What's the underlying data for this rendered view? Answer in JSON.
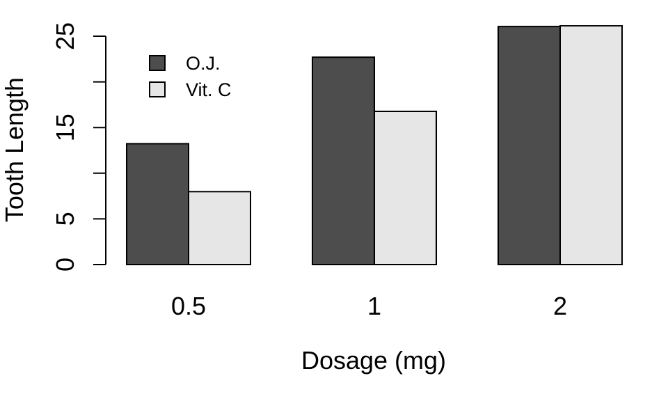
{
  "chart_data": {
    "type": "bar",
    "grouped": true,
    "title": "",
    "xlabel": "Dosage (mg)",
    "ylabel": "Tooth Length",
    "categories": [
      "0.5",
      "1",
      "2"
    ],
    "series": [
      {
        "name": "O.J.",
        "color": "#4d4d4d",
        "values": [
          13.23,
          22.7,
          26.06
        ]
      },
      {
        "name": "Vit. C",
        "color": "#e6e6e6",
        "values": [
          7.98,
          16.77,
          26.14
        ]
      }
    ],
    "ylim": [
      0,
      25
    ],
    "yticks": [
      0,
      5,
      15,
      25
    ],
    "grid": false,
    "legend_position": "top-left"
  }
}
